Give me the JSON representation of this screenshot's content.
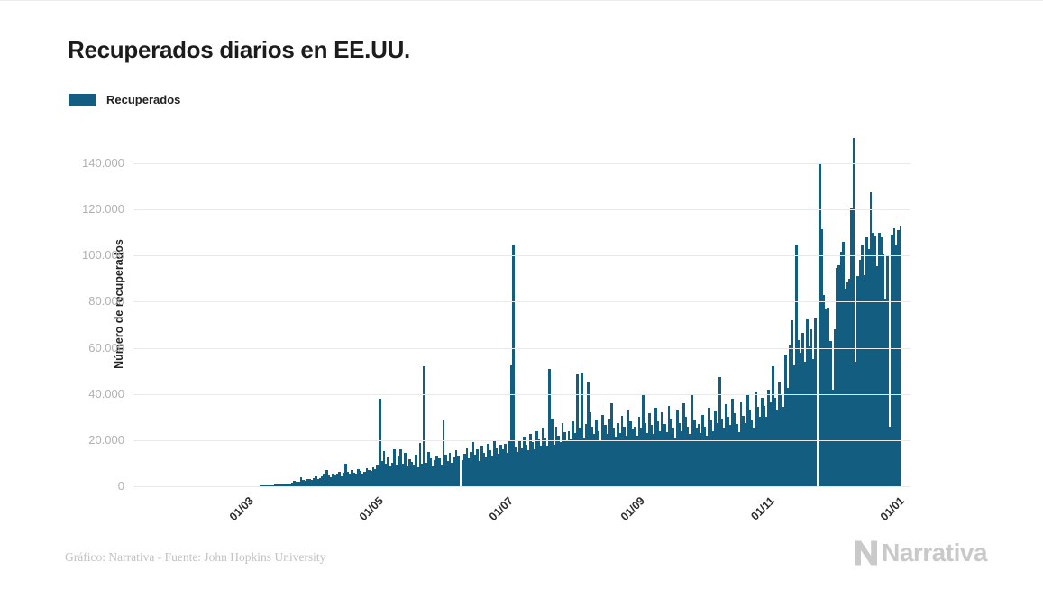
{
  "header": {
    "title": "Recuperados diarios en EE.UU."
  },
  "legend": {
    "label": "Recuperados",
    "swatch_color": "#125d80"
  },
  "chart_data": {
    "type": "bar",
    "title": "Recuperados diarios en EE.UU.",
    "xlabel": "",
    "ylabel": "Número de recuperados",
    "series_name": "Recuperados",
    "bar_color": "#125d80",
    "ylim": [
      0,
      140000
    ],
    "grid": "horizontal",
    "legend_position": "top-left",
    "y_ticks": [
      {
        "value": 0,
        "label": "0"
      },
      {
        "value": 20000,
        "label": "20.000"
      },
      {
        "value": 40000,
        "label": "40.000"
      },
      {
        "value": 60000,
        "label": "60.000"
      },
      {
        "value": 80000,
        "label": "80.000"
      },
      {
        "value": 100000,
        "label": "100.000"
      },
      {
        "value": 120000,
        "label": "120.000"
      },
      {
        "value": 140000,
        "label": "140.000"
      }
    ],
    "x_ticks": [
      {
        "label": "01/03",
        "day_index": 8
      },
      {
        "label": "01/05",
        "day_index": 69
      },
      {
        "label": "01/07",
        "day_index": 130
      },
      {
        "label": "01/09",
        "day_index": 192
      },
      {
        "label": "01/11",
        "day_index": 253
      },
      {
        "label": "01/01",
        "day_index": 314
      }
    ],
    "values": [
      5,
      8,
      10,
      12,
      15,
      18,
      22,
      30,
      40,
      55,
      70,
      90,
      110,
      140,
      170,
      200,
      240,
      280,
      330,
      380,
      440,
      500,
      570,
      640,
      720,
      800,
      880,
      960,
      1050,
      1150,
      1250,
      1500,
      2500,
      2000,
      1800,
      4000,
      2600,
      2200,
      3000,
      3200,
      2800,
      3500,
      4200,
      3000,
      3600,
      4500,
      5200,
      7200,
      4800,
      4100,
      5500,
      4600,
      5000,
      6200,
      4400,
      5800,
      9800,
      6400,
      5200,
      7000,
      6000,
      5400,
      7400,
      6800,
      5600,
      6100,
      7800,
      7200,
      6500,
      8200,
      7400,
      9000,
      38000,
      11000,
      15200,
      9600,
      12400,
      8800,
      10200,
      16000,
      9200,
      12800,
      16200,
      9800,
      14400,
      8600,
      11600,
      10400,
      9000,
      13600,
      8400,
      18600,
      9600,
      52000,
      10200,
      14800,
      12200,
      8800,
      11400,
      13000,
      12000,
      9500,
      28500,
      13500,
      11000,
      14500,
      10000,
      12500,
      15500,
      13000,
      0,
      11500,
      14000,
      16500,
      12000,
      15000,
      19000,
      13500,
      16000,
      11000,
      17500,
      14500,
      12500,
      18500,
      15500,
      13000,
      20000,
      16500,
      14000,
      18000,
      16000,
      18500,
      14500,
      20000,
      52500,
      104400,
      17000,
      15000,
      19500,
      16500,
      21500,
      18000,
      15500,
      22500,
      19000,
      16000,
      24000,
      20500,
      17500,
      25500,
      21000,
      17500,
      51000,
      29500,
      18000,
      26000,
      22000,
      19000,
      27500,
      23500,
      20000,
      24000,
      20500,
      28000,
      23000,
      48500,
      25500,
      49000,
      21000,
      27000,
      45000,
      32000,
      26000,
      22500,
      28500,
      24000,
      20000,
      31000,
      26500,
      22500,
      29000,
      36000,
      25000,
      21500,
      27500,
      23000,
      30500,
      26000,
      22000,
      33000,
      28000,
      24500,
      26000,
      22000,
      30000,
      25000,
      40000,
      27500,
      23000,
      31500,
      26500,
      22500,
      34000,
      28000,
      24000,
      32000,
      27000,
      23500,
      35000,
      29000,
      25000,
      21000,
      33000,
      27500,
      24000,
      36000,
      30000,
      26000,
      22500,
      40000,
      28500,
      25000,
      27000,
      23000,
      31000,
      26000,
      22000,
      34000,
      28500,
      24000,
      32500,
      27500,
      47500,
      29500,
      25000,
      35500,
      30000,
      26500,
      38000,
      31500,
      27000,
      23500,
      36500,
      30500,
      27500,
      39500,
      33000,
      28500,
      25000,
      41000,
      34500,
      30000,
      38500,
      35000,
      30000,
      42000,
      36500,
      52000,
      38500,
      33000,
      45000,
      39500,
      34500,
      57000,
      42500,
      61000,
      71800,
      52500,
      104300,
      63500,
      58000,
      66500,
      54000,
      72500,
      60500,
      68000,
      55000,
      72800,
      0,
      139600,
      111500,
      83000,
      77000,
      77500,
      63000,
      42000,
      68000,
      94500,
      96000,
      101500,
      106000,
      85500,
      88500,
      90000,
      120500,
      151000,
      54000,
      91000,
      98000,
      104500,
      91500,
      108000,
      103000,
      127500,
      110000,
      108500,
      95500,
      110000,
      108000,
      100500,
      81000,
      100000,
      26000,
      109000,
      112000,
      104500,
      111000,
      112500
    ]
  },
  "footer": {
    "source": "Gráfico: Narrativa - Fuente: John Hopkins University",
    "logo_text": "Narrativa"
  }
}
